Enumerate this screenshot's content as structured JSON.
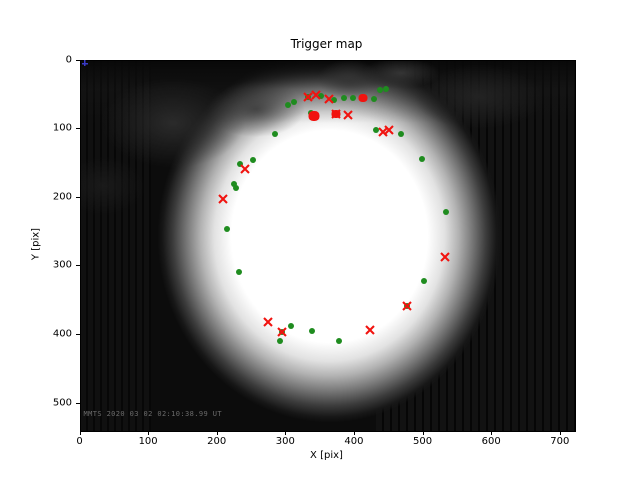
{
  "figure": {
    "background": "#ffffff"
  },
  "chart_data": {
    "type": "scatter",
    "title": "Trigger map",
    "xlabel": "X [pix]",
    "ylabel": "Y [pix]",
    "xlim": [
      0,
      720
    ],
    "ylim": [
      540,
      0
    ],
    "x_ticks": [
      0,
      100,
      200,
      300,
      400,
      500,
      600,
      700
    ],
    "y_ticks": [
      0,
      100,
      200,
      300,
      400,
      500
    ],
    "grid": false,
    "legend": "none",
    "image_description": "grayscale all-sky camera frame: bright white circular field of view fading to black edges, gray cloud texture along the top rim, faint vertical column striping in the dark right region",
    "timestamp_overlay": "MMTS 2020 03 02 02:10:38.99 UT",
    "colors": {
      "green": "#1f8c1f",
      "red": "#f1130f",
      "blue": "#3a3ac8"
    },
    "series": [
      {
        "name": "green-dots",
        "marker": "circle",
        "color": "#1f8c1f",
        "points": [
          [
            303,
            65
          ],
          [
            311,
            61
          ],
          [
            336,
            77
          ],
          [
            332,
            53
          ],
          [
            351,
            52
          ],
          [
            370,
            58
          ],
          [
            384,
            55
          ],
          [
            397,
            55
          ],
          [
            428,
            56
          ],
          [
            437,
            43
          ],
          [
            445,
            42
          ],
          [
            431,
            101
          ],
          [
            467,
            107
          ],
          [
            284,
            107
          ],
          [
            251,
            145
          ],
          [
            232,
            151
          ],
          [
            224,
            180
          ],
          [
            227,
            186
          ],
          [
            214,
            246
          ],
          [
            231,
            308
          ],
          [
            294,
            396
          ],
          [
            307,
            387
          ],
          [
            291,
            409
          ],
          [
            337,
            394
          ],
          [
            377,
            409
          ],
          [
            476,
            358
          ],
          [
            498,
            144
          ],
          [
            533,
            221
          ],
          [
            501,
            321
          ]
        ]
      },
      {
        "name": "red-x",
        "marker": "x",
        "color": "#f1130f",
        "points": [
          [
            332,
            53
          ],
          [
            343,
            50
          ],
          [
            362,
            56
          ],
          [
            372,
            78
          ],
          [
            390,
            79
          ],
          [
            441,
            104
          ],
          [
            450,
            101
          ],
          [
            240,
            158
          ],
          [
            208,
            202
          ],
          [
            273,
            381
          ],
          [
            294,
            396
          ],
          [
            422,
            393
          ],
          [
            476,
            358
          ],
          [
            531,
            286
          ]
        ]
      },
      {
        "name": "red-blobs",
        "marker": "filled-blob",
        "color": "#f1130f",
        "points": [
          [
            340,
            81,
            11
          ],
          [
            372,
            78,
            9
          ],
          [
            412,
            54,
            9
          ]
        ]
      },
      {
        "name": "blue-plus",
        "marker": "plus",
        "color": "#3a3ac8",
        "points": [
          [
            6,
            4
          ]
        ]
      }
    ]
  }
}
